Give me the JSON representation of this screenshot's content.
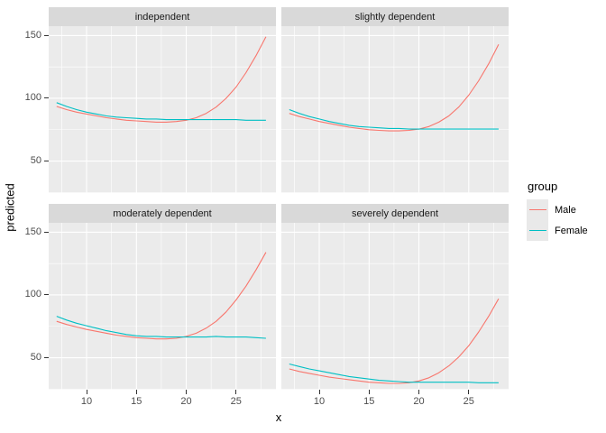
{
  "chart_data": {
    "type": "line",
    "faceted": true,
    "title": "",
    "xlabel": "x",
    "ylabel": "predicted",
    "x": [
      7,
      8,
      9,
      10,
      11,
      12,
      13,
      14,
      15,
      16,
      17,
      18,
      19,
      20,
      21,
      22,
      23,
      24,
      25,
      26,
      27,
      28
    ],
    "axes": {
      "x": {
        "ticks": [
          10,
          15,
          20,
          25
        ],
        "minor_breaks": [
          7.5,
          12.5,
          17.5,
          22.5,
          27.5
        ],
        "domain": [
          6.2,
          29.0
        ]
      },
      "y": {
        "ticks": [
          50,
          100,
          150
        ],
        "minor_breaks": [
          25,
          75,
          125
        ],
        "domain": [
          24.5,
          157.5
        ]
      }
    },
    "legend": {
      "title": "group",
      "position": "right",
      "entries": [
        {
          "label": "Male",
          "color": "#F8766D"
        },
        {
          "label": "Female",
          "color": "#00BFC4"
        }
      ]
    },
    "facets": [
      {
        "label": "independent",
        "series": [
          {
            "name": "Male",
            "color": "#F8766D",
            "values": [
              93.5,
              91,
              89,
              87.5,
              86,
              84.5,
              83.5,
              82.5,
              82,
              81.5,
              81,
              81,
              81.5,
              82.5,
              84.5,
              88,
              93,
              100,
              109,
              120.5,
              134,
              149
            ]
          },
          {
            "name": "Female",
            "color": "#00BFC4",
            "values": [
              96.5,
              93.5,
              91,
              89,
              87.5,
              86,
              85,
              84.5,
              84,
              83.5,
              83.5,
              83,
              83,
              83,
              83,
              83,
              83,
              83,
              83,
              82.5,
              82.5,
              82.5
            ]
          }
        ]
      },
      {
        "label": "slightly dependent",
        "series": [
          {
            "name": "Male",
            "color": "#F8766D",
            "values": [
              88,
              85.5,
              83.5,
              81.5,
              80,
              78.5,
              77,
              76,
              75,
              74.5,
              74,
              74,
              74.5,
              75.5,
              77.5,
              81,
              86,
              93,
              102.5,
              114,
              127.5,
              143
            ]
          },
          {
            "name": "Female",
            "color": "#00BFC4",
            "values": [
              91,
              88,
              85.5,
              83.5,
              81.5,
              80,
              78.5,
              77.5,
              77,
              76.5,
              76,
              76,
              75.5,
              75.5,
              75.5,
              75.5,
              75.5,
              75.5,
              75.5,
              75.5,
              75.5,
              75.5
            ]
          }
        ]
      },
      {
        "label": "moderately dependent",
        "series": [
          {
            "name": "Male",
            "color": "#F8766D",
            "values": [
              79,
              76.5,
              74.5,
              72.5,
              71,
              69.5,
              68,
              67,
              66,
              65.5,
              65,
              65,
              65.5,
              67,
              69.5,
              73.5,
              79,
              86.5,
              96,
              107,
              120,
              134
            ]
          },
          {
            "name": "Female",
            "color": "#00BFC4",
            "values": [
              83,
              80,
              77.5,
              75.5,
              73.5,
              71.5,
              70,
              68.5,
              67.5,
              67,
              67,
              66.5,
              66.5,
              66.5,
              66.5,
              66.5,
              67,
              66.5,
              66.5,
              66.5,
              66,
              65.5
            ]
          }
        ]
      },
      {
        "label": "severely dependent",
        "series": [
          {
            "name": "Male",
            "color": "#F8766D",
            "values": [
              41,
              39,
              37.5,
              36,
              34.5,
              33.5,
              32.5,
              31.5,
              30.5,
              30,
              29.5,
              29.5,
              30,
              31.5,
              34,
              38,
              43.5,
              50.5,
              59.5,
              70.5,
              83,
              97
            ]
          },
          {
            "name": "Female",
            "color": "#00BFC4",
            "values": [
              45,
              43,
              41,
              39.5,
              38,
              36.5,
              35,
              34,
              33,
              32,
              31.5,
              31,
              30.5,
              30.5,
              30.5,
              30.5,
              30.5,
              30.5,
              30.5,
              30,
              30,
              30
            ]
          }
        ]
      }
    ],
    "theme": {
      "panel_bg": "#EBEBEB",
      "strip_bg": "#D9D9D9",
      "grid_color": "#FFFFFF",
      "tick_label_color": "#4D4D4D",
      "tick_mark_color": "#333333",
      "legend_key_bg": "#E9E9E9"
    }
  }
}
